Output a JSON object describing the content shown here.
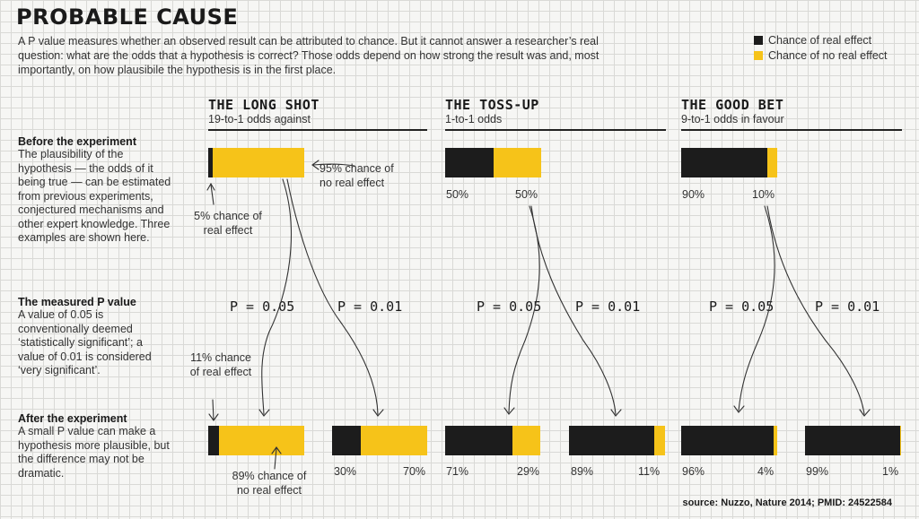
{
  "title": "PROBABLE CAUSE",
  "intro_html": "A P value measures whether an observed result can be attributed to chance. But it cannot answer a researcher’s real question: what are the odds that a hypothesis is correct? Those odds depend on how strong the result was and, most importantly, on how plausibile the hypothesis is in the first place.",
  "legend": {
    "real": "Chance of real effect",
    "none": "Chance of no real effect",
    "real_color": "#1c1c1c",
    "none_color": "#f6c319"
  },
  "sections": {
    "before": {
      "head": "Before the experiment",
      "body": "The plausibility of the hypothesis — the odds of it being true — can be estimated from previous experiments, conjectured mechanisms and other expert knowledge. Three examples are shown here."
    },
    "measured": {
      "head": "The measured P value",
      "body": "A value of 0.05 is conventionally deemed ‘statistically significant’; a value of 0.01 is considered ‘very significant’."
    },
    "after": {
      "head": "After the experiment",
      "body": "A small P value can make a hypothesis more plausible, but the difference may not be dramatic."
    }
  },
  "columns": [
    {
      "title": "THE LONG SHOT",
      "subtitle": "19-to-1 odds against",
      "prior": {
        "real": 5,
        "none": 95
      },
      "p05": {
        "label": "P = 0.05",
        "real": 11,
        "none": 89
      },
      "p01": {
        "label": "P = 0.01",
        "real": 30,
        "none": 70
      }
    },
    {
      "title": "THE TOSS-UP",
      "subtitle": "1-to-1 odds",
      "prior": {
        "real": 50,
        "none": 50,
        "real_label": "50%",
        "none_label": "50%"
      },
      "p05": {
        "label": "P = 0.05",
        "real": 71,
        "none": 29,
        "real_label": "71%",
        "none_label": "29%"
      },
      "p01": {
        "label": "P = 0.01",
        "real": 89,
        "none": 11,
        "real_label": "89%",
        "none_label": "11%"
      }
    },
    {
      "title": "THE GOOD BET",
      "subtitle": "9-to-1 odds in favour",
      "prior": {
        "real": 90,
        "none": 10,
        "real_label": "90%",
        "none_label": "10%"
      },
      "p05": {
        "label": "P = 0.05",
        "real": 96,
        "none": 4,
        "real_label": "96%",
        "none_label": "4%"
      },
      "p01": {
        "label": "P = 0.01",
        "real": 99,
        "none": 1,
        "real_label": "99%",
        "none_label": "1%"
      }
    }
  ],
  "annotations": {
    "longshot_prior_none": "95% chance of no real effect",
    "longshot_prior_real": "5% chance of real effect",
    "longshot_p05_real": "11% chance of real effect",
    "longshot_p05_none": "89% chance of no real effect",
    "longshot_p01_real": "30%",
    "longshot_p01_none": "70%"
  },
  "source": "source: Nuzzo, Nature 2014; PMID: 24522584"
}
